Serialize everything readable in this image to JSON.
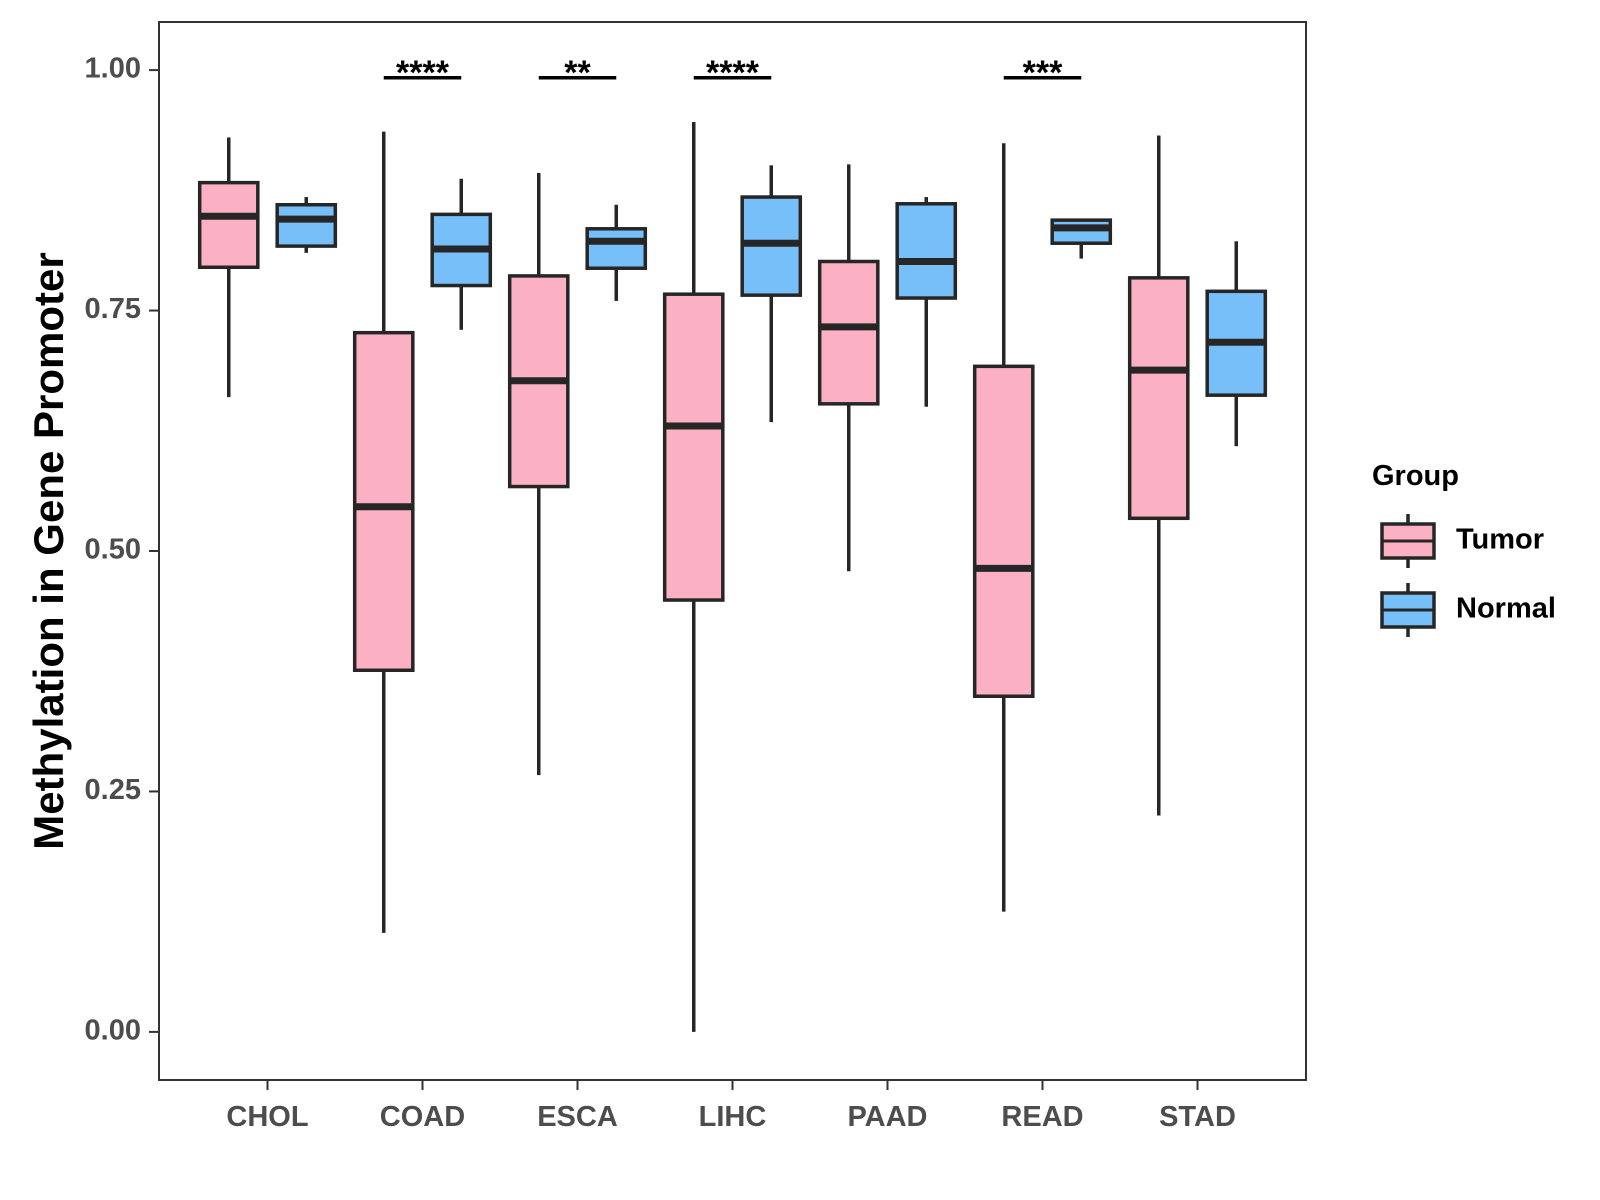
{
  "chart_data": {
    "type": "boxplot",
    "title": "",
    "xlabel": "",
    "ylabel": "Methylation in Gene Promoter",
    "ylim": [
      -0.05,
      1.05
    ],
    "y_ticks": [
      0.0,
      0.25,
      0.5,
      0.75,
      1.0
    ],
    "y_tick_labels": [
      "0.00",
      "0.25",
      "0.50",
      "0.75",
      "1.00"
    ],
    "categories": [
      "CHOL",
      "COAD",
      "ESCA",
      "LIHC",
      "PAAD",
      "READ",
      "STAD"
    ],
    "legend": {
      "title": "Group",
      "position": "right",
      "entries": [
        {
          "name": "Tumor",
          "color": "#FBB0C3"
        },
        {
          "name": "Normal",
          "color": "#76BFF8"
        }
      ]
    },
    "series": [
      {
        "name": "Tumor",
        "color": "#FBB0C3",
        "boxes": [
          {
            "category": "CHOL",
            "whisker_low": 0.66,
            "q1": 0.795,
            "median": 0.848,
            "q3": 0.883,
            "whisker_high": 0.93
          },
          {
            "category": "COAD",
            "whisker_low": 0.103,
            "q1": 0.376,
            "median": 0.546,
            "q3": 0.727,
            "whisker_high": 0.936
          },
          {
            "category": "ESCA",
            "whisker_low": 0.267,
            "q1": 0.567,
            "median": 0.677,
            "q3": 0.786,
            "whisker_high": 0.893
          },
          {
            "category": "LIHC",
            "whisker_low": 0.0,
            "q1": 0.449,
            "median": 0.63,
            "q3": 0.767,
            "whisker_high": 0.946
          },
          {
            "category": "PAAD",
            "whisker_low": 0.479,
            "q1": 0.653,
            "median": 0.733,
            "q3": 0.801,
            "whisker_high": 0.902
          },
          {
            "category": "READ",
            "whisker_low": 0.125,
            "q1": 0.349,
            "median": 0.482,
            "q3": 0.692,
            "whisker_high": 0.924
          },
          {
            "category": "STAD",
            "whisker_low": 0.225,
            "q1": 0.534,
            "median": 0.688,
            "q3": 0.784,
            "whisker_high": 0.932
          }
        ]
      },
      {
        "name": "Normal",
        "color": "#76BFF8",
        "boxes": [
          {
            "category": "CHOL",
            "whisker_low": 0.81,
            "q1": 0.817,
            "median": 0.845,
            "q3": 0.86,
            "whisker_high": 0.868
          },
          {
            "category": "COAD",
            "whisker_low": 0.73,
            "q1": 0.776,
            "median": 0.814,
            "q3": 0.85,
            "whisker_high": 0.887
          },
          {
            "category": "ESCA",
            "whisker_low": 0.76,
            "q1": 0.794,
            "median": 0.822,
            "q3": 0.835,
            "whisker_high": 0.86
          },
          {
            "category": "LIHC",
            "whisker_low": 0.634,
            "q1": 0.766,
            "median": 0.82,
            "q3": 0.868,
            "whisker_high": 0.901
          },
          {
            "category": "PAAD",
            "whisker_low": 0.65,
            "q1": 0.763,
            "median": 0.801,
            "q3": 0.861,
            "whisker_high": 0.868
          },
          {
            "category": "READ",
            "whisker_low": 0.804,
            "q1": 0.82,
            "median": 0.836,
            "q3": 0.844,
            "whisker_high": 0.845
          },
          {
            "category": "STAD",
            "whisker_low": 0.609,
            "q1": 0.662,
            "median": 0.717,
            "q3": 0.77,
            "whisker_high": 0.822
          }
        ]
      }
    ],
    "significance": [
      {
        "category": "COAD",
        "label": "****",
        "y": 0.992
      },
      {
        "category": "ESCA",
        "label": "**",
        "y": 0.992
      },
      {
        "category": "LIHC",
        "label": "****",
        "y": 0.992
      },
      {
        "category": "READ",
        "label": "***",
        "y": 0.992
      }
    ],
    "grid": false
  }
}
